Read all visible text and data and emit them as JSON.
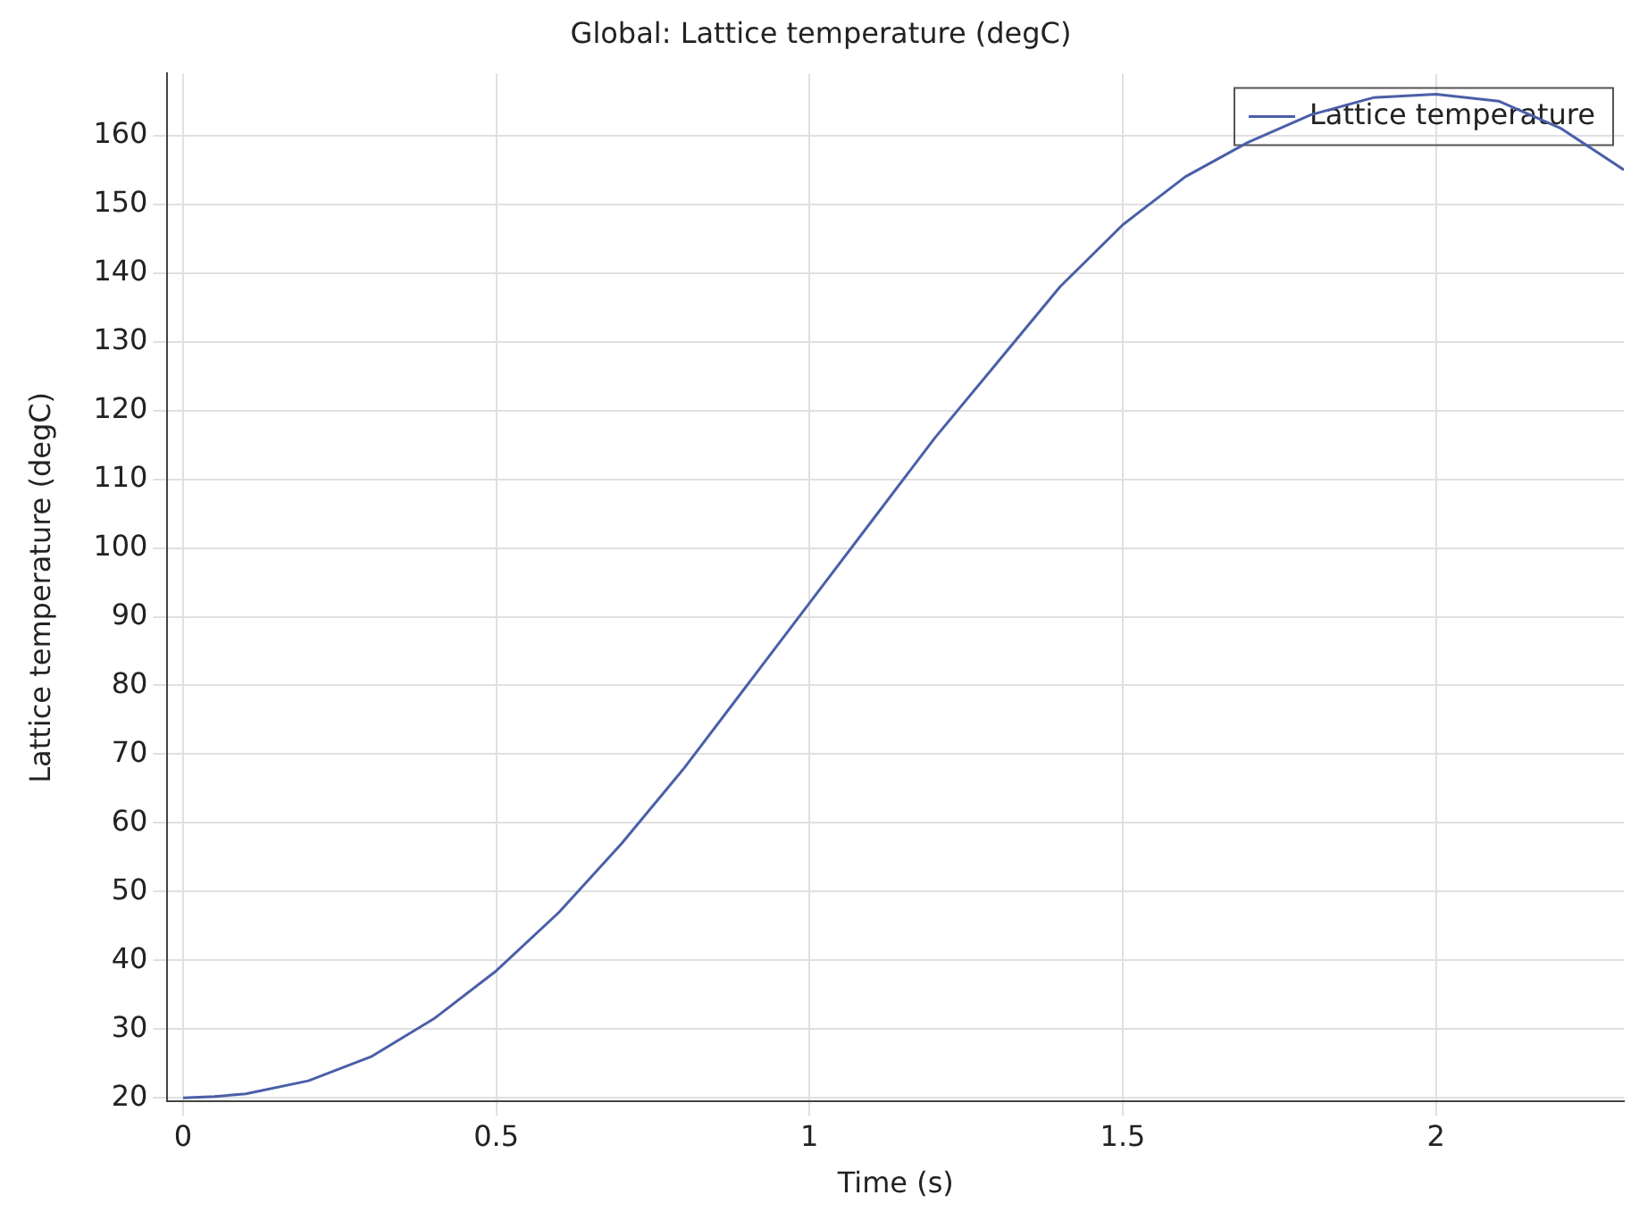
{
  "chart_data": {
    "type": "line",
    "title": "Global: Lattice temperature (degC)",
    "xlabel": "Time (s)",
    "ylabel": "Lattice temperature (degC)",
    "x": [
      0,
      0.05,
      0.1,
      0.2,
      0.3,
      0.4,
      0.5,
      0.6,
      0.7,
      0.8,
      0.9,
      1.0,
      1.1,
      1.2,
      1.3,
      1.4,
      1.5,
      1.6,
      1.7,
      1.8,
      1.9,
      2.0,
      2.1,
      2.2,
      2.3
    ],
    "series": [
      {
        "name": "Lattice temperature",
        "color": "#4a5fa8",
        "values": [
          20,
          20.2,
          20.6,
          22.5,
          26,
          31.5,
          38.5,
          47,
          57,
          68,
          80,
          92,
          104,
          116,
          127,
          138,
          147,
          154,
          159,
          163,
          165.5,
          166,
          165,
          161,
          155
        ]
      }
    ],
    "xlim": [
      -0.025,
      2.3
    ],
    "xticks": [
      0,
      0.5,
      1,
      1.5,
      2
    ],
    "ylim": [
      19.5,
      169
    ],
    "yticks": [
      20,
      30,
      40,
      50,
      60,
      70,
      80,
      90,
      100,
      110,
      120,
      130,
      140,
      150,
      160
    ],
    "grid": true,
    "legend": "top right",
    "marker": "none",
    "line_style": "solid"
  }
}
